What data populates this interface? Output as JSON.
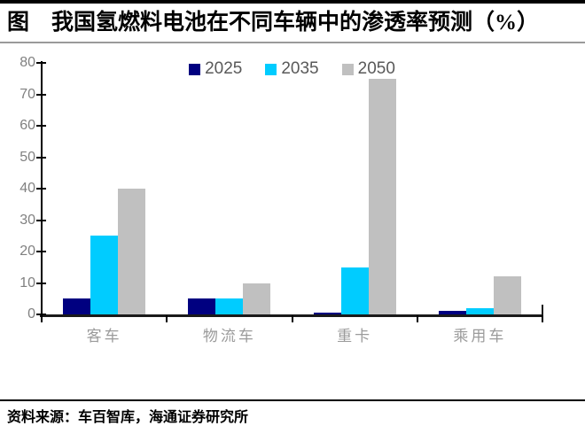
{
  "title": "图　我国氢燃料电池在不同车辆中的渗透率预测（%）",
  "source": "资料来源：车百智库，海通证券研究所",
  "colors": {
    "series_2025": "#000080",
    "series_2035": "#00CCFF",
    "series_2050": "#C0C0C0",
    "axis": "#000000",
    "tick_label": "#808080",
    "category_label": "#9B9B9B",
    "legend_text": "#595959"
  },
  "chart_data": {
    "type": "bar",
    "title": "我国氢燃料电池在不同车辆中的渗透率预测（%）",
    "categories": [
      "客车",
      "物流车",
      "重卡",
      "乘用车"
    ],
    "series": [
      {
        "name": "2025",
        "color": "#000080",
        "values": [
          5,
          5,
          0.5,
          1
        ]
      },
      {
        "name": "2035",
        "color": "#00CCFF",
        "values": [
          25,
          5,
          15,
          2
        ]
      },
      {
        "name": "2050",
        "color": "#C0C0C0",
        "values": [
          40,
          10,
          75,
          12
        ]
      }
    ],
    "xlabel": "",
    "ylabel": "",
    "ylim": [
      0,
      80
    ],
    "yticks": [
      0,
      10,
      20,
      30,
      40,
      50,
      60,
      70,
      80
    ],
    "grid": false,
    "legend_position": "top-center"
  }
}
